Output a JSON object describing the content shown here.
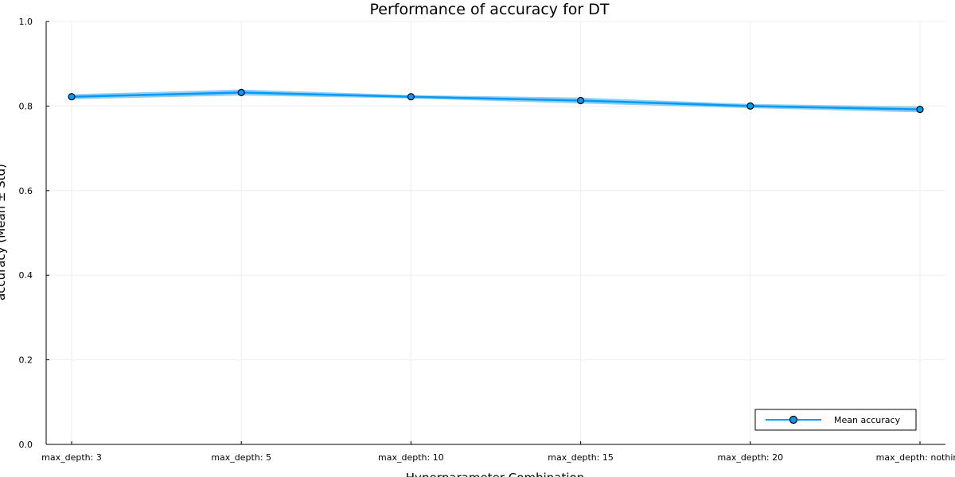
{
  "chart_data": {
    "type": "line",
    "title": "Performance of accuracy for DT",
    "xlabel": "Hyperparameter Combination",
    "ylabel": "accuracy (Mean ± Std)",
    "categories": [
      "max_depth: 3",
      "max_depth: 5",
      "max_depth: 10",
      "max_depth: 15",
      "max_depth: 20",
      "max_depth: nothing"
    ],
    "series": [
      {
        "name": "Mean accuracy",
        "values": [
          0.822,
          0.832,
          0.822,
          0.813,
          0.8,
          0.792
        ],
        "std": [
          0.006,
          0.007,
          0.004,
          0.007,
          0.005,
          0.007
        ]
      }
    ],
    "ylim": [
      0,
      1.0
    ],
    "yticks": [
      "0.0",
      "0.2",
      "0.4",
      "0.6",
      "0.8",
      "1.0"
    ],
    "grid": true,
    "legend_position": "bottom-right",
    "colors": {
      "line": "#009af9",
      "band": "#7cc6f5",
      "marker_edge": "#000000",
      "axis": "#000000",
      "grid": "#eeeeee"
    }
  }
}
